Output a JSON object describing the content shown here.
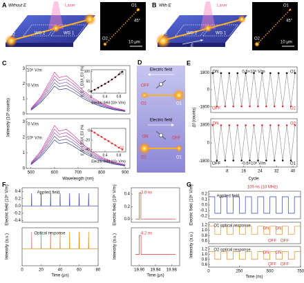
{
  "panels": {
    "A": {
      "label": "A",
      "title": "Without E",
      "laser": "Laser",
      "o1": "O1",
      "o2": "O2",
      "wg2": "WG 2",
      "wg1": "WG 1",
      "inset_o1": "O1",
      "inset_o2": "O2",
      "angle": "45°",
      "scale": "10 μm"
    },
    "B": {
      "label": "B",
      "title": "With E",
      "laser": "Laser",
      "o1": "O1",
      "o2": "O2",
      "wg2": "WG 2",
      "wg1": "WG 1",
      "field": "E",
      "inset_o1": "O1",
      "inset_o2": "O2",
      "angle": "45°",
      "scale": "10 μm"
    },
    "D": {
      "label": "D",
      "top_field": "Electric field",
      "top_off": "OFF",
      "top_o2": "O2",
      "top_o1": "O1",
      "bottom_field": "Electric field",
      "bottom_on": "ON",
      "bottom_off": "OFF",
      "bottom_o2": "O2",
      "bottom_o1": "O1"
    }
  },
  "panel_labels": [
    "C",
    "E",
    "F",
    "G"
  ],
  "chart_data": [
    {
      "type": "line",
      "xlim": [
        480,
        920
      ],
      "ylim": [
        0,
        3.2
      ],
      "yticks": [
        0,
        1,
        2,
        3
      ],
      "ylabel": "Intensity (10³ counts)",
      "x": [
        500,
        540,
        580,
        600,
        620,
        650,
        680,
        720,
        760,
        800,
        850,
        900
      ],
      "series": [
        {
          "color": "#d63a9a",
          "values": [
            0.36,
            1.08,
            2.16,
            2.76,
            2.4,
            2.52,
            2.16,
            1.56,
            1.08,
            0.72,
            0.42,
            0.24
          ]
        },
        {
          "color": "#b24aa8",
          "values": [
            0.33,
            0.99,
            1.98,
            2.53,
            2.2,
            2.31,
            1.98,
            1.43,
            0.99,
            0.66,
            0.39,
            0.22
          ]
        },
        {
          "color": "#8a4fb0",
          "values": [
            0.3,
            0.9,
            1.8,
            2.3,
            2.0,
            2.1,
            1.8,
            1.3,
            0.9,
            0.6,
            0.35,
            0.2
          ]
        },
        {
          "color": "#5a4aa0",
          "values": [
            0.27,
            0.81,
            1.62,
            2.07,
            1.8,
            1.89,
            1.62,
            1.17,
            0.81,
            0.54,
            0.32,
            0.18
          ]
        },
        {
          "color": "#2e3a8a",
          "values": [
            0.24,
            0.72,
            1.44,
            1.84,
            1.6,
            1.68,
            1.44,
            1.04,
            0.72,
            0.48,
            0.28,
            0.16
          ]
        }
      ],
      "annotations": [
        {
          "text": "10⁶ V/m",
          "color": "#222"
        },
        {
          "text": "0 V/m",
          "color": "#222"
        }
      ]
    },
    {
      "type": "line",
      "xlim": [
        0,
        1
      ],
      "ylim": [
        -10,
        110
      ],
      "xticks": [
        0,
        0.4,
        0.8
      ],
      "yticks": [
        0,
        50,
        100
      ],
      "xlabel": "Electric field (10⁶ V/m)",
      "ylabel": "(I_E−I_E0)/I_E0 (%)",
      "x": [
        0,
        0.1,
        0.2,
        0.3,
        0.4,
        0.5,
        0.6,
        0.7,
        0.8,
        0.9
      ],
      "series": [
        {
          "color": "#e03030",
          "values": [
            0,
            8,
            18,
            28,
            38,
            48,
            60,
            72,
            86,
            100
          ]
        }
      ],
      "markers": true,
      "marker_color": "#111",
      "annotations": [
        {
          "text": "O1",
          "color": "#111"
        }
      ]
    },
    {
      "type": "line",
      "xlim": [
        480,
        920
      ],
      "ylim": [
        0,
        3.2
      ],
      "xticks": [
        500,
        600,
        700,
        800,
        900
      ],
      "yticks": [
        0,
        1,
        2,
        3
      ],
      "xlabel": "Wavelength (nm)",
      "x": [
        500,
        540,
        580,
        600,
        620,
        650,
        680,
        720,
        760,
        800,
        850,
        900
      ],
      "series": [
        {
          "color": "#d63a9a",
          "values": [
            0.36,
            1.08,
            2.16,
            2.76,
            2.4,
            2.52,
            2.16,
            1.56,
            1.08,
            0.72,
            0.42,
            0.24
          ]
        },
        {
          "color": "#b24aa8",
          "values": [
            0.33,
            0.99,
            1.98,
            2.53,
            2.2,
            2.31,
            1.98,
            1.43,
            0.99,
            0.66,
            0.39,
            0.22
          ]
        },
        {
          "color": "#8a4fb0",
          "values": [
            0.3,
            0.9,
            1.8,
            2.3,
            2.0,
            2.1,
            1.8,
            1.3,
            0.9,
            0.6,
            0.35,
            0.2
          ]
        },
        {
          "color": "#5a4aa0",
          "values": [
            0.27,
            0.81,
            1.62,
            2.07,
            1.8,
            1.89,
            1.62,
            1.17,
            0.81,
            0.54,
            0.32,
            0.18
          ]
        },
        {
          "color": "#2e3a8a",
          "values": [
            0.24,
            0.72,
            1.44,
            1.84,
            1.6,
            1.68,
            1.44,
            1.04,
            0.72,
            0.48,
            0.28,
            0.16
          ]
        }
      ],
      "annotations": [
        {
          "text": "0 V/m",
          "color": "#222"
        },
        {
          "text": "10⁶ V/m",
          "color": "#222"
        }
      ]
    },
    {
      "type": "line",
      "xlim": [
        0,
        1
      ],
      "ylim": [
        -45,
        5
      ],
      "xticks": [
        0,
        0.4,
        0.8
      ],
      "yticks": [
        0,
        -20,
        -40
      ],
      "xlabel": "Electric field (10⁶ V/m)",
      "ylabel": "(I_E−I_E0)/I_E0 (%)",
      "x": [
        0,
        0.1,
        0.2,
        0.3,
        0.4,
        0.5,
        0.6,
        0.7,
        0.8,
        0.9
      ],
      "series": [
        {
          "color": "#e03030",
          "values": [
            0,
            -4,
            -9,
            -13,
            -18,
            -22,
            -27,
            -31,
            -36,
            -40
          ]
        }
      ],
      "markers": true,
      "marker_color": "#e03030",
      "annotations": [
        {
          "text": "O2",
          "color": "#e03030"
        }
      ]
    },
    {
      "type": "line",
      "xlim": [
        0,
        42
      ],
      "ylim": [
        -2400,
        2400
      ],
      "yticks": [
        -1800,
        0,
        1800
      ],
      "ylabel": "ΔI (counts)",
      "x": [
        1,
        3,
        5,
        7,
        9,
        11,
        13,
        15,
        17,
        19,
        21,
        23,
        25,
        27,
        29,
        31,
        33,
        35,
        37,
        39,
        41
      ],
      "series": [
        {
          "color": "#999",
          "values": [
            1750,
            -1750,
            1750,
            -1750,
            1750,
            -1750,
            1750,
            -1750,
            1750,
            -1750,
            1750,
            -1750,
            1750,
            -1750,
            1750,
            -1750,
            1750,
            -1750,
            1750,
            -1750,
            1750
          ]
        }
      ],
      "markers": true,
      "pos_color": "#111",
      "neg_color": "#e03030",
      "annotations": [
        {
          "text": "ON",
          "color": "#111"
        },
        {
          "text": "0.6×10⁶ V/m",
          "color": "#111"
        },
        {
          "text": "O1",
          "color": "#111"
        },
        {
          "text": "OFF",
          "color": "#e03030"
        },
        {
          "text": "O2",
          "color": "#e03030"
        }
      ]
    },
    {
      "type": "line",
      "xlim": [
        0,
        42
      ],
      "ylim": [
        -2400,
        2400
      ],
      "xticks": [
        8,
        16,
        24,
        32,
        40
      ],
      "yticks": [
        -1800,
        0,
        1800
      ],
      "xlabel": "Cycle",
      "x": [
        1,
        3,
        5,
        7,
        9,
        11,
        13,
        15,
        17,
        19,
        21,
        23,
        25,
        27,
        29,
        31,
        33,
        35,
        37,
        39,
        41
      ],
      "series": [
        {
          "color": "#999",
          "values": [
            1750,
            -1750,
            1750,
            -1750,
            1750,
            -1750,
            1750,
            -1750,
            1750,
            -1750,
            1750,
            -1750,
            1750,
            -1750,
            1750,
            -1750,
            1750,
            -1750,
            1750,
            -1750,
            1750
          ]
        }
      ],
      "markers": true,
      "pos_color": "#e03030",
      "neg_color": "#111",
      "annotations": [
        {
          "text": "ON",
          "color": "#e03030"
        },
        {
          "text": "O2",
          "color": "#e03030"
        },
        {
          "text": "OFF",
          "color": "#111"
        },
        {
          "text": "-0.6×10⁶ V/m",
          "color": "#111"
        },
        {
          "text": "O1",
          "color": "#111"
        }
      ]
    },
    {
      "type": "line",
      "xlim": [
        0,
        80
      ],
      "ylim": [
        -0.45,
        0.5
      ],
      "yticks": [
        -0.4,
        -0.2,
        {
          "value": 0,
          "label": "0.0"
        },
        0.2,
        0.4
      ],
      "ylabel": "Electric field (10⁶ V/m)",
      "x": [
        0,
        9.8,
        10,
        10.2,
        19.8,
        20,
        20.2,
        29.8,
        30,
        30.2,
        39.8,
        40,
        40.2,
        49.8,
        50,
        50.2,
        59.8,
        60,
        60.2,
        69.8,
        70,
        70.2,
        80
      ],
      "series": [
        {
          "color": "#2a3fbf",
          "values": [
            0,
            0,
            0.35,
            0,
            0,
            0.35,
            0,
            0,
            0.35,
            0,
            0,
            0.35,
            0,
            0,
            0.35,
            0,
            0,
            0.35,
            0,
            0,
            0.35,
            0,
            0
          ]
        }
      ],
      "annotations": [
        {
          "text": "Applied field",
          "color": "#222"
        }
      ]
    },
    {
      "type": "line",
      "xlim": [
        0,
        80
      ],
      "ylim": [
        0,
        1
      ],
      "xticks": [
        0,
        20,
        40,
        60,
        80
      ],
      "xlabel": "Time (μs)",
      "ylabel": "Intensity (a.u.)",
      "x": [
        0,
        9.8,
        10,
        10.2,
        19.8,
        20,
        20.2,
        29.8,
        30,
        30.2,
        39.8,
        40,
        40.2,
        49.8,
        50,
        50.2,
        59.8,
        60,
        60.2,
        69.8,
        70,
        70.2,
        80
      ],
      "series": [
        {
          "color": "#e08a1a",
          "values": [
            0.45,
            0.45,
            0.9,
            0.45,
            0.45,
            0.9,
            0.45,
            0.45,
            0.9,
            0.45,
            0.45,
            0.9,
            0.45,
            0.45,
            0.9,
            0.45,
            0.45,
            0.9,
            0.45,
            0.45,
            0.9,
            0.45,
            0.45
          ]
        }
      ],
      "annotations": [
        {
          "text": "Optical response",
          "color": "#222"
        }
      ]
    },
    {
      "type": "line",
      "xlim": [
        19.88,
        20
      ],
      "ylim": [
        -0.05,
        0.5
      ],
      "yticks": [
        {
          "value": 0,
          "label": "0.0"
        },
        0.2,
        0.4
      ],
      "ylabel": "Electric field (10⁶ V/m)",
      "x": [
        19.89,
        19.9,
        19.9,
        19.9038,
        19.9038,
        19.99
      ],
      "series": [
        {
          "color": "#e03030",
          "values": [
            0,
            0,
            0.42,
            0.42,
            0,
            0
          ]
        }
      ],
      "annotations": [
        {
          "text": "3.8 ns",
          "color": "#e03030"
        }
      ]
    },
    {
      "type": "line",
      "xlim": [
        19.88,
        20
      ],
      "ylim": [
        0,
        1
      ],
      "xticks": [
        {
          "value": 19.9,
          "label": "19.90"
        },
        19.94,
        19.98
      ],
      "xlabel": "Time (μs)",
      "ylabel": "Intensity (a.u.)",
      "x": [
        19.89,
        19.9,
        19.9,
        19.9042,
        19.9042,
        19.99
      ],
      "series": [
        {
          "color": "#e03030",
          "values": [
            0.3,
            0.3,
            0.8,
            0.8,
            0.3,
            0.3
          ]
        }
      ],
      "annotations": [
        {
          "text": "4.2 ns",
          "color": "#e03030"
        }
      ]
    },
    {
      "type": "line",
      "xlim": [
        0,
        750
      ],
      "ylim": [
        -0.25,
        0.25
      ],
      "yticks": [
        -0.2,
        -0.1,
        {
          "value": 0,
          "label": "0.0"
        },
        0.1,
        0.2
      ],
      "ylabel": "Electric field (10⁶ V/m)",
      "x": [
        0,
        50,
        50,
        100,
        100,
        150,
        150,
        200,
        200,
        250,
        250,
        300,
        300,
        350,
        350,
        400,
        400,
        450,
        450,
        500,
        500,
        550,
        550,
        600,
        600,
        650,
        650,
        700,
        700,
        750
      ],
      "series": [
        {
          "color": "#2a3fbf",
          "values": [
            0.15,
            0.15,
            -0.15,
            -0.15,
            0.15,
            0.15,
            -0.15,
            -0.15,
            0.15,
            0.15,
            -0.15,
            -0.15,
            0.15,
            0.15,
            -0.15,
            -0.15,
            0.15,
            0.15,
            -0.15,
            -0.15,
            0.15,
            0.15,
            -0.15,
            -0.15,
            0.15,
            0.15,
            -0.15,
            -0.15,
            0.15,
            0.15
          ]
        }
      ],
      "annotations": [
        {
          "text": "Applied field",
          "color": "#222"
        },
        {
          "text": "100 ns (10 MHz)",
          "color": "#e03030"
        }
      ]
    },
    {
      "type": "line",
      "xlim": [
        0,
        750
      ],
      "ylim": [
        0.5,
        1.3
      ],
      "yticks": [
        0.6,
        0.8,
        {
          "value": 1,
          "label": "1.0"
        },
        1.2
      ],
      "ylabel": "Intensity (a.u.)",
      "x": [
        0,
        50,
        50,
        100,
        100,
        150,
        150,
        200,
        200,
        250,
        250,
        300,
        300,
        350,
        350,
        400,
        400,
        450,
        450,
        500,
        500,
        550,
        550,
        600,
        600,
        650,
        650,
        700,
        700,
        750
      ],
      "series": [
        {
          "color": "#e08a1a",
          "values": [
            1.15,
            1.15,
            0.85,
            0.85,
            1.15,
            1.15,
            0.85,
            0.85,
            1.15,
            1.15,
            0.85,
            0.85,
            1.15,
            1.15,
            0.85,
            0.85,
            1.15,
            1.15,
            0.85,
            0.85,
            1.15,
            1.15,
            0.85,
            0.85,
            1.15,
            1.15,
            0.85,
            0.85,
            1.15,
            1.15
          ]
        }
      ],
      "annotations": [
        {
          "text": "O1 optical response",
          "color": "#222"
        },
        {
          "text": "ON",
          "color": "#e03030"
        },
        {
          "text": "ON",
          "color": "#e03030"
        },
        {
          "text": "OFF",
          "color": "#e03030"
        },
        {
          "text": "OFF",
          "color": "#e03030"
        }
      ]
    },
    {
      "type": "line",
      "xlim": [
        0,
        750
      ],
      "ylim": [
        0.5,
        1.3
      ],
      "xticks": [
        0,
        250,
        500,
        750
      ],
      "yticks": [
        0.6,
        0.8,
        {
          "value": 1,
          "label": "1.0"
        },
        1.2
      ],
      "xlabel": "Time (ns)",
      "x": [
        0,
        50,
        50,
        100,
        100,
        150,
        150,
        200,
        200,
        250,
        250,
        300,
        300,
        350,
        350,
        400,
        400,
        450,
        450,
        500,
        500,
        550,
        550,
        600,
        600,
        650,
        650,
        700,
        700,
        750
      ],
      "series": [
        {
          "color": "#e08a1a",
          "values": [
            1.1,
            1.1,
            0.8,
            0.8,
            1.1,
            1.1,
            0.8,
            0.8,
            1.1,
            1.1,
            0.8,
            0.8,
            1.1,
            1.1,
            0.8,
            0.8,
            1.1,
            1.1,
            0.8,
            0.8,
            1.1,
            1.1,
            0.8,
            0.8,
            1.1,
            1.1,
            0.8,
            0.8,
            1.1,
            1.1
          ]
        }
      ],
      "annotations": [
        {
          "text": "O2 optical response",
          "color": "#222"
        },
        {
          "text": "ON",
          "color": "#e03030"
        },
        {
          "text": "ON",
          "color": "#e03030"
        },
        {
          "text": "OFF",
          "color": "#e03030"
        },
        {
          "text": "OFF",
          "color": "#e03030"
        }
      ]
    }
  ]
}
